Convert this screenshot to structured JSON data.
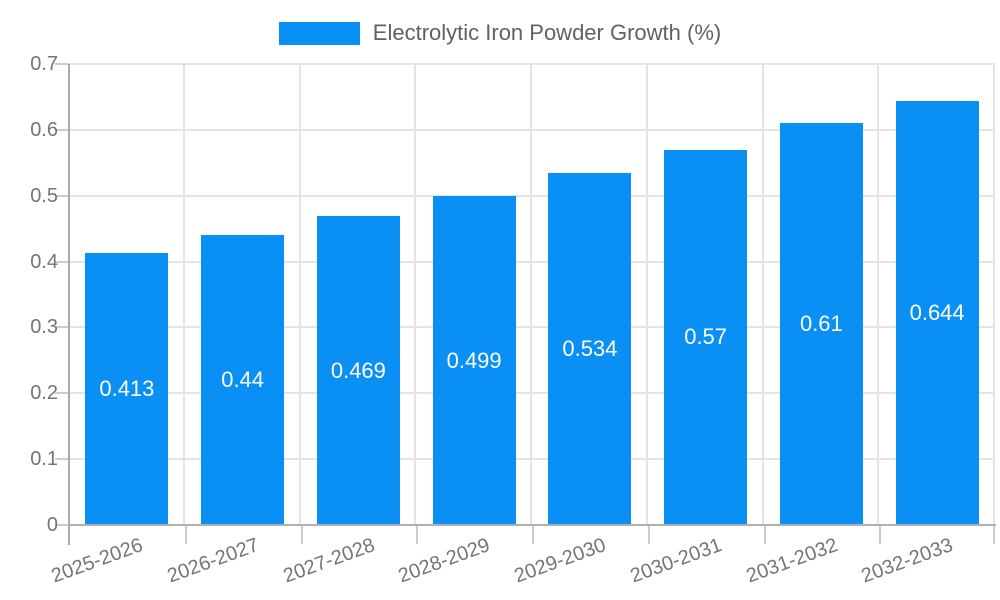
{
  "chart_data": {
    "type": "bar",
    "title": "Electrolytic Iron Powder Growth (%)",
    "categories": [
      "2025-2026",
      "2026-2027",
      "2027-2028",
      "2028-2029",
      "2029-2030",
      "2030-2031",
      "2031-2032",
      "2032-2033"
    ],
    "values": [
      0.413,
      0.44,
      0.469,
      0.499,
      0.534,
      0.57,
      0.61,
      0.644
    ],
    "value_labels": [
      "0.413",
      "0.44",
      "0.469",
      "0.499",
      "0.534",
      "0.57",
      "0.61",
      "0.644"
    ],
    "xlabel": "",
    "ylabel": "",
    "ylim": [
      0,
      0.7
    ],
    "y_tick_values": [
      0,
      0.1,
      0.2,
      0.3,
      0.4,
      0.5,
      0.6,
      0.7
    ],
    "y_tick_labels": [
      "0",
      "0.1",
      "0.2",
      "0.3",
      "0.4",
      "0.5",
      "0.6",
      "0.7"
    ],
    "grid": true,
    "legend_position": "top-center",
    "colors": {
      "bar": "#0a90f5",
      "bar_value_text": "#ffffff",
      "grid_line": "#e4e4e4",
      "axis_line": "#aaaaaa",
      "baseline": "#b0b0b0",
      "tick_mark": "#cccccc",
      "tick_text": "#757575",
      "legend_text": "#616161",
      "background": "#ffffff"
    }
  }
}
